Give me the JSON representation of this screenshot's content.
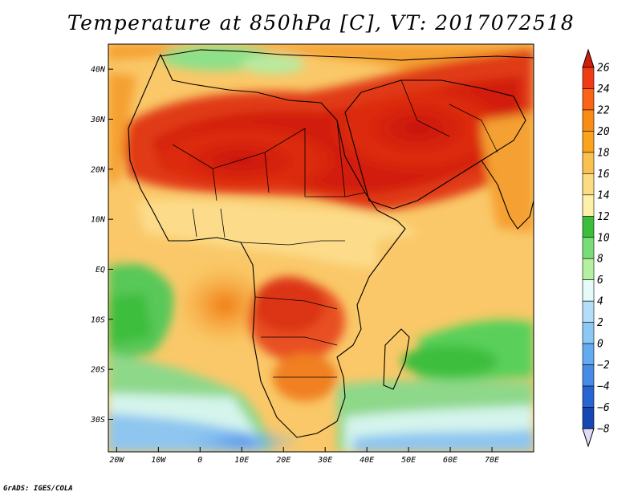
{
  "title": "Temperature at 850hPa [C], VT: 2017072518",
  "credit": "GrADS: IGES/COLA",
  "map": {
    "lon_range": [
      -22,
      80
    ],
    "lat_range": [
      -36.5,
      45
    ],
    "lon_ticks": [
      {
        "value": -20,
        "label": "20W"
      },
      {
        "value": -10,
        "label": "10W"
      },
      {
        "value": 0,
        "label": "0"
      },
      {
        "value": 10,
        "label": "10E"
      },
      {
        "value": 20,
        "label": "20E"
      },
      {
        "value": 30,
        "label": "30E"
      },
      {
        "value": 40,
        "label": "40E"
      },
      {
        "value": 50,
        "label": "50E"
      },
      {
        "value": 60,
        "label": "60E"
      },
      {
        "value": 70,
        "label": "70E"
      }
    ],
    "lat_ticks": [
      {
        "value": 40,
        "label": "40N"
      },
      {
        "value": 30,
        "label": "30N"
      },
      {
        "value": 20,
        "label": "20N"
      },
      {
        "value": 10,
        "label": "10N"
      },
      {
        "value": 0,
        "label": "EQ"
      },
      {
        "value": -10,
        "label": "10S"
      },
      {
        "value": -20,
        "label": "20S"
      },
      {
        "value": -30,
        "label": "30S"
      }
    ]
  },
  "colorbar": {
    "levels": [
      26,
      24,
      22,
      20,
      18,
      16,
      14,
      12,
      10,
      8,
      6,
      4,
      2,
      0,
      -2,
      -4,
      -6,
      -8
    ],
    "colors": [
      "#f03c14",
      "#fa6414",
      "#fa8c14",
      "#faa41e",
      "#fac050",
      "#fcdc82",
      "#fef0a8",
      "#3cbe3c",
      "#78dc78",
      "#b4f0a0",
      "#e6fafa",
      "#b4def8",
      "#8cc8f4",
      "#64aaf0",
      "#468ce6",
      "#2864d2",
      "#1446b4",
      "#0a2878",
      "#e0dcf8"
    ],
    "top_color": "#d21e0a",
    "bottom_color": "#e0dcf8"
  }
}
